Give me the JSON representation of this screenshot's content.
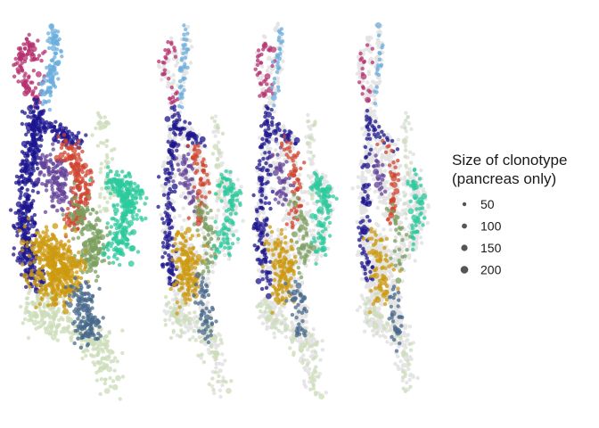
{
  "chart_data": {
    "type": "scatter",
    "title": "",
    "xlabel": "",
    "ylabel": "",
    "grid": false,
    "panels_count": 4,
    "legend": {
      "title_line1": "Size of clonotype",
      "title_line2": "(pancreas only)",
      "placement": "right",
      "point_color": "#555555",
      "entries": [
        {
          "label": "50",
          "value": 50
        },
        {
          "label": "100",
          "value": 100
        },
        {
          "label": "150",
          "value": 150
        },
        {
          "label": "200",
          "value": 200
        }
      ]
    },
    "cluster_colors": {
      "magenta": "#b5306f",
      "light_blue": "#6aaedd",
      "navy": "#1e168f",
      "purple": "#64439a",
      "red": "#d0442f",
      "olive_green": "#7b9f5f",
      "teal": "#2cc99c",
      "gold": "#cc9a10",
      "slate_blue": "#4a6a8c",
      "pale_green": "#ccdcb8",
      "background_grey": "#e3e3e3"
    }
  }
}
